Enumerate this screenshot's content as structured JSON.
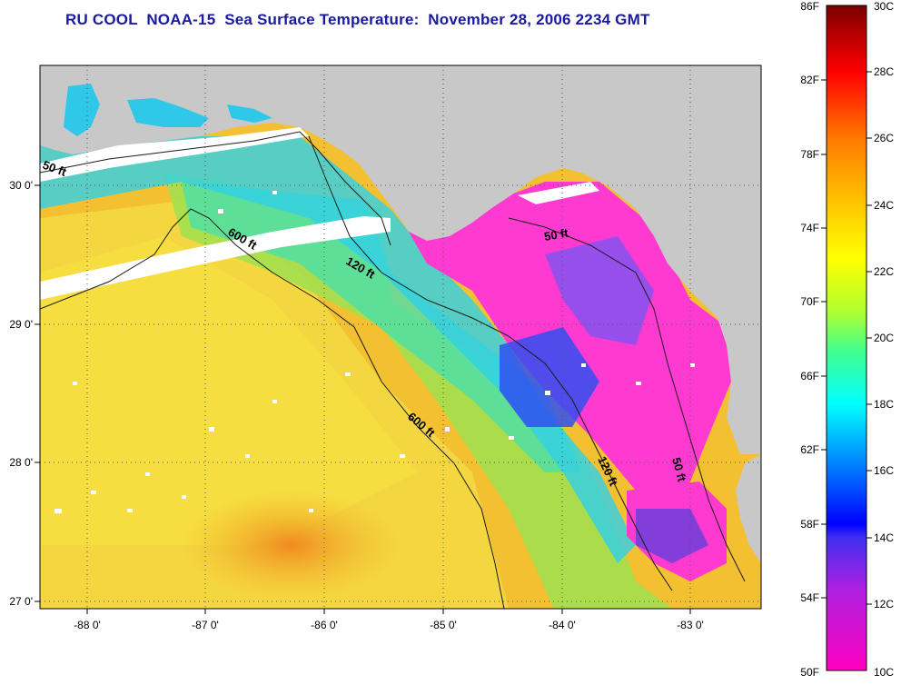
{
  "title": "RU COOL  NOAA-15  Sea Surface Temperature:  November 28, 2006 2234 GMT",
  "map": {
    "lat_labels": [
      "30 0'",
      "29 0'",
      "28 0'",
      "27 0'"
    ],
    "lon_labels": [
      "-88 0'",
      "-87 0'",
      "-86 0'",
      "-85 0'",
      "-84 0'",
      "-83 0'"
    ],
    "contour_labels": [
      "50 ft",
      "600 ft",
      "120 ft",
      "50 ft",
      "600 ft",
      "120 ft",
      "50 ft"
    ],
    "colors": {
      "land": "#c8c8c8",
      "cloud": "#ffffff",
      "warm": "#f4c22a",
      "cool": "#ff3ad0"
    }
  },
  "colorbar": {
    "fahrenheit_labels": [
      "86F",
      "82F",
      "78F",
      "74F",
      "70F",
      "66F",
      "62F",
      "58F",
      "54F",
      "50F"
    ],
    "celsius_labels": [
      "30C",
      "28C",
      "26C",
      "24C",
      "22C",
      "20C",
      "18C",
      "16C",
      "14C",
      "12C",
      "10C"
    ]
  }
}
